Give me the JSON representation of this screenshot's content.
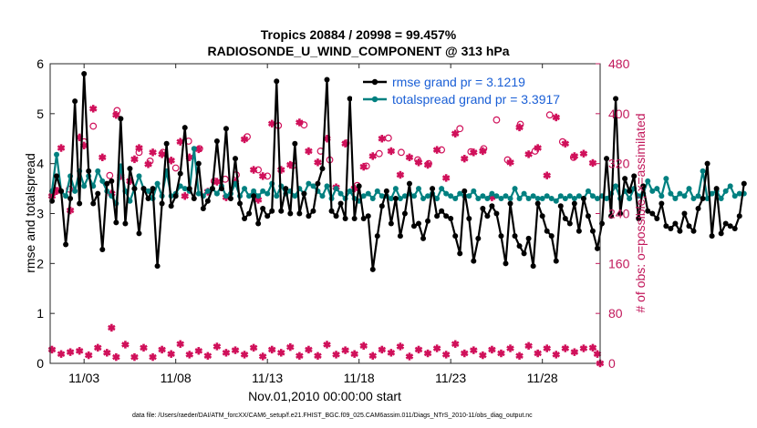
{
  "chart_data": {
    "type": "line",
    "title_line1": "Tropics 20884 / 20998 = 99.457%",
    "title_line2": "RADIOSONDE_U_WIND_COMPONENT @ 313 hPa",
    "xlabel": "Nov.01,2010 00:00:00 start",
    "ylabel_left": "rmse and totalspread",
    "ylabel_right": "# of obs: o=possible; ×=assimilated",
    "footer": "data file: /Users/raeder/DAI/ATM_forcXX/CAM6_setup/f.e21.FHIST_BGC.f09_025.CAM6assim.011/Diags_NTrS_2010-11/obs_diag_output.nc",
    "x_range_days": [
      1.15,
      31.15
    ],
    "x_ticks": [
      {
        "value": 3,
        "label": "11/03"
      },
      {
        "value": 8,
        "label": "11/08"
      },
      {
        "value": 13,
        "label": "11/13"
      },
      {
        "value": 18,
        "label": "11/18"
      },
      {
        "value": 23,
        "label": "11/23"
      },
      {
        "value": 28,
        "label": "11/28"
      }
    ],
    "y_left_range": [
      0,
      6
    ],
    "y_left_ticks": [
      0,
      1,
      2,
      3,
      4,
      5,
      6
    ],
    "y_right_range": [
      0,
      480
    ],
    "y_right_ticks": [
      0,
      80,
      160,
      240,
      320,
      400,
      480
    ],
    "x_start_day": 1.25,
    "x_step_days": 0.25,
    "series": [
      {
        "name": "rmse grand pr = 3.1219",
        "axis": "left",
        "color": "#000000",
        "values": [
          3.25,
          3.75,
          3.45,
          2.38,
          3.3,
          5.25,
          3.2,
          5.8,
          3.85,
          3.2,
          3.4,
          2.28,
          3.6,
          3.65,
          2.82,
          4.9,
          2.8,
          3.9,
          3.5,
          2.6,
          3.5,
          3.3,
          3.5,
          1.95,
          3.2,
          4.4,
          3.15,
          3.35,
          3.8,
          4.72,
          3.5,
          3.3,
          4.0,
          3.1,
          3.25,
          3.5,
          4.45,
          3.5,
          4.7,
          3.3,
          4.1,
          3.2,
          2.9,
          3.0,
          3.35,
          2.8,
          3.1,
          2.95,
          3.05,
          5.65,
          3.05,
          3.5,
          3.0,
          4.4,
          3.0,
          3.4,
          2.95,
          3.05,
          3.6,
          3.9,
          5.68,
          3.05,
          2.95,
          3.2,
          2.9,
          5.3,
          2.9,
          3.55,
          2.9,
          2.95,
          1.88,
          2.55,
          3.15,
          3.45,
          2.8,
          3.3,
          2.55,
          3.0,
          3.6,
          2.75,
          2.8,
          2.5,
          2.85,
          3.5,
          2.95,
          3.05,
          2.95,
          2.9,
          2.55,
          2.2,
          3.45,
          2.9,
          2.05,
          2.5,
          3.1,
          2.95,
          3.15,
          3.0,
          2.55,
          2.0,
          3.2,
          2.55,
          2.35,
          2.2,
          2.5,
          1.95,
          3.2,
          2.95,
          2.65,
          2.55,
          2.05,
          3.15,
          2.9,
          2.8,
          3.2,
          2.65,
          3.3,
          2.95,
          2.65,
          2.3,
          2.8,
          4.1,
          2.95,
          5.3,
          3.0,
          3.7,
          3.45,
          3.75,
          2.9,
          3.55,
          3.05,
          3.0,
          2.9,
          3.2,
          2.75,
          2.7,
          2.8,
          2.65,
          3.0,
          2.75,
          2.65,
          3.1,
          3.3,
          4.0,
          2.55,
          3.5,
          2.6,
          2.8,
          2.75,
          2.7,
          2.95,
          3.6
        ]
      },
      {
        "name": "totalspread grand pr = 3.3917",
        "axis": "left",
        "color": "#008080",
        "values": [
          3.45,
          4.18,
          3.45,
          3.35,
          3.75,
          3.45,
          3.85,
          3.55,
          3.75,
          3.55,
          3.85,
          3.65,
          3.45,
          3.35,
          3.2,
          3.95,
          3.45,
          3.25,
          3.5,
          3.75,
          3.5,
          3.45,
          3.3,
          3.6,
          3.35,
          3.85,
          3.35,
          3.4,
          3.55,
          3.5,
          3.45,
          4.3,
          3.4,
          3.35,
          3.45,
          3.5,
          3.4,
          3.55,
          3.35,
          3.4,
          3.6,
          3.35,
          3.5,
          3.35,
          3.45,
          3.35,
          3.45,
          3.4,
          3.6,
          3.35,
          3.55,
          3.4,
          3.45,
          3.35,
          3.5,
          3.4,
          3.6,
          3.55,
          3.45,
          3.35,
          3.55,
          3.3,
          3.5,
          3.4,
          3.3,
          3.45,
          3.3,
          3.25,
          3.35,
          3.4,
          3.3,
          3.45,
          3.35,
          3.35,
          3.3,
          3.5,
          3.3,
          3.35,
          3.4,
          3.35,
          3.5,
          3.3,
          3.35,
          3.4,
          3.3,
          3.5,
          3.4,
          3.35,
          3.3,
          3.4,
          3.35,
          3.35,
          3.45,
          3.3,
          3.35,
          3.3,
          3.4,
          3.35,
          3.3,
          3.35,
          3.3,
          3.5,
          3.3,
          3.4,
          3.3,
          3.35,
          3.3,
          3.3,
          3.35,
          3.3,
          3.25,
          3.35,
          3.3,
          3.35,
          3.3,
          3.35,
          3.3,
          3.45,
          3.35,
          3.3,
          3.35,
          3.3,
          3.4,
          3.55,
          3.3,
          3.45,
          3.3,
          3.5,
          3.35,
          3.4,
          3.65,
          3.45,
          3.5,
          3.35,
          3.7,
          3.4,
          3.3,
          3.4,
          3.35,
          3.5,
          3.3,
          3.35,
          3.85,
          3.3,
          3.4,
          3.45,
          3.3,
          3.45,
          3.55,
          3.35,
          3.4,
          3.4
        ]
      }
    ],
    "obs_possible": {
      "name": "possible",
      "axis": "right",
      "color": "#d0105a",
      "points": [
        [
          1.5,
          277
        ],
        [
          2.2,
          279
        ],
        [
          3.0,
          355
        ],
        [
          3.5,
          380
        ],
        [
          4.4,
          301
        ],
        [
          4.8,
          405
        ],
        [
          6.0,
          338
        ],
        [
          6.6,
          324
        ],
        [
          7.3,
          338
        ],
        [
          8.0,
          313
        ],
        [
          8.7,
          356
        ],
        [
          9.3,
          344
        ],
        [
          10.1,
          292
        ],
        [
          10.7,
          295
        ],
        [
          11.3,
          302
        ],
        [
          11.9,
          363
        ],
        [
          12.5,
          310
        ],
        [
          13.0,
          300
        ],
        [
          13.6,
          381
        ],
        [
          14.4,
          317
        ],
        [
          15.0,
          382
        ],
        [
          15.9,
          340
        ],
        [
          16.4,
          326
        ],
        [
          17.3,
          353
        ],
        [
          17.9,
          285
        ],
        [
          18.4,
          316
        ],
        [
          19.1,
          336
        ],
        [
          19.6,
          361
        ],
        [
          20.3,
          338
        ],
        [
          21.2,
          326
        ],
        [
          21.8,
          320
        ],
        [
          22.5,
          342
        ],
        [
          23.5,
          376
        ],
        [
          24.1,
          339
        ],
        [
          24.8,
          344
        ],
        [
          25.5,
          390
        ],
        [
          26.1,
          326
        ],
        [
          26.8,
          383
        ],
        [
          27.6,
          340
        ],
        [
          28.4,
          398
        ],
        [
          29.1,
          355
        ],
        [
          29.7,
          330
        ]
      ]
    },
    "obs_assimilated": {
      "name": "assimilated",
      "axis": "right",
      "color": "#d0105a",
      "points": [
        [
          1.25,
          268
        ],
        [
          1.5,
          276
        ],
        [
          1.75,
          345
        ],
        [
          2.25,
          245
        ],
        [
          2.75,
          362
        ],
        [
          3.0,
          349
        ],
        [
          3.5,
          408
        ],
        [
          4.0,
          330
        ],
        [
          4.5,
          272
        ],
        [
          4.75,
          398
        ],
        [
          5.0,
          300
        ],
        [
          5.5,
          292
        ],
        [
          5.75,
          327
        ],
        [
          6.0,
          345
        ],
        [
          6.5,
          319
        ],
        [
          6.75,
          338
        ],
        [
          7.25,
          335
        ],
        [
          7.75,
          325
        ],
        [
          8.25,
          355
        ],
        [
          8.5,
          268
        ],
        [
          8.75,
          330
        ],
        [
          9.25,
          343
        ],
        [
          9.75,
          275
        ],
        [
          10.25,
          291
        ],
        [
          10.75,
          266
        ],
        [
          11.25,
          290
        ],
        [
          11.75,
          359
        ],
        [
          12.25,
          310
        ],
        [
          12.5,
          262
        ],
        [
          12.75,
          300
        ],
        [
          13.25,
          384
        ],
        [
          13.75,
          310
        ],
        [
          14.25,
          318
        ],
        [
          14.75,
          386
        ],
        [
          15.25,
          340
        ],
        [
          15.75,
          322
        ],
        [
          16.25,
          360
        ],
        [
          16.75,
          282
        ],
        [
          17.25,
          352
        ],
        [
          17.75,
          280
        ],
        [
          18.25,
          315
        ],
        [
          18.75,
          332
        ],
        [
          19.25,
          360
        ],
        [
          19.75,
          340
        ],
        [
          20.25,
          302
        ],
        [
          20.75,
          330
        ],
        [
          21.25,
          322
        ],
        [
          21.75,
          318
        ],
        [
          22.25,
          342
        ],
        [
          22.75,
          297
        ],
        [
          23.25,
          368
        ],
        [
          23.75,
          328
        ],
        [
          24.25,
          338
        ],
        [
          24.75,
          340
        ],
        [
          25.25,
          266
        ],
        [
          25.75,
          431
        ],
        [
          26.25,
          322
        ],
        [
          26.75,
          378
        ],
        [
          27.25,
          335
        ],
        [
          27.75,
          345
        ],
        [
          28.25,
          301
        ],
        [
          28.75,
          394
        ],
        [
          29.25,
          352
        ],
        [
          29.75,
          332
        ],
        [
          30.25,
          336
        ],
        [
          30.75,
          321
        ]
      ]
    },
    "obs_assimilated_bottom": {
      "name": "assimilated (low counts)",
      "axis": "right",
      "color": "#d0105a",
      "points": [
        [
          1.25,
          22
        ],
        [
          1.75,
          15
        ],
        [
          2.25,
          18
        ],
        [
          2.75,
          20
        ],
        [
          3.25,
          13
        ],
        [
          3.75,
          25
        ],
        [
          4.25,
          17
        ],
        [
          4.5,
          57
        ],
        [
          4.75,
          10
        ],
        [
          5.25,
          30
        ],
        [
          5.75,
          10
        ],
        [
          6.25,
          25
        ],
        [
          6.75,
          10
        ],
        [
          7.25,
          22
        ],
        [
          7.75,
          15
        ],
        [
          8.25,
          31
        ],
        [
          8.75,
          14
        ],
        [
          9.25,
          20
        ],
        [
          9.75,
          12
        ],
        [
          10.25,
          27
        ],
        [
          10.75,
          17
        ],
        [
          11.25,
          21
        ],
        [
          11.75,
          14
        ],
        [
          12.25,
          25
        ],
        [
          12.75,
          11
        ],
        [
          13.25,
          22
        ],
        [
          13.75,
          17
        ],
        [
          14.25,
          26
        ],
        [
          14.75,
          12
        ],
        [
          15.25,
          22
        ],
        [
          15.75,
          12
        ],
        [
          16.25,
          30
        ],
        [
          16.75,
          14
        ],
        [
          17.25,
          21
        ],
        [
          17.75,
          15
        ],
        [
          18.25,
          28
        ],
        [
          18.75,
          12
        ],
        [
          19.25,
          22
        ],
        [
          19.75,
          17
        ],
        [
          20.25,
          27
        ],
        [
          20.75,
          11
        ],
        [
          21.25,
          22
        ],
        [
          21.75,
          16
        ],
        [
          22.25,
          24
        ],
        [
          22.75,
          14
        ],
        [
          23.25,
          31
        ],
        [
          23.75,
          16
        ],
        [
          24.25,
          21
        ],
        [
          24.75,
          13
        ],
        [
          25.25,
          22
        ],
        [
          25.75,
          16
        ],
        [
          26.25,
          24
        ],
        [
          26.75,
          12
        ],
        [
          27.25,
          28
        ],
        [
          27.75,
          16
        ],
        [
          28.25,
          24
        ],
        [
          28.75,
          14
        ],
        [
          29.25,
          24
        ],
        [
          29.75,
          18
        ],
        [
          30.25,
          24
        ],
        [
          30.75,
          25
        ],
        [
          31.0,
          15
        ],
        [
          31.15,
          0
        ]
      ]
    },
    "legend_position": "top-right"
  }
}
